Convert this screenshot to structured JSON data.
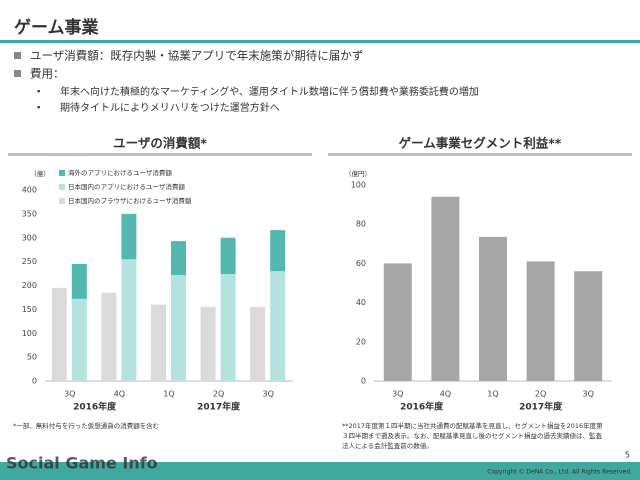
{
  "header": {
    "title": "ゲーム事業"
  },
  "bullets": [
    {
      "text": "ユーザ消費額：既存内製・協業アプリで年末施策が期待に届かず"
    },
    {
      "text": "費用：",
      "sub": [
        "年末へ向けた積極的なマーケティングや、運用タイトル数増に伴う償却費や業務委託費の増加",
        "期待タイトルによりメリハリをつけた運営方針へ"
      ]
    }
  ],
  "chart_data": [
    {
      "type": "bar",
      "title": "ユーザの消費額*",
      "unit": "（億）",
      "groups": [
        {
          "label": "2016年度",
          "categories": [
            "3Q",
            "4Q"
          ]
        },
        {
          "label": "2017年度",
          "categories": [
            "1Q",
            "2Q",
            "3Q"
          ]
        }
      ],
      "series": [
        {
          "name": "海外のアプリにおけるユーザ消費額",
          "color": "#55b8b0",
          "values": [
            73,
            95,
            71,
            76,
            86
          ]
        },
        {
          "name": "日本国内のアプリにおけるユーザ消費額",
          "color": "#b4e2de",
          "values": [
            172,
            255,
            222,
            224,
            230
          ]
        },
        {
          "name": "日本国内のブラウザにおけるユーザ消費額",
          "color": "#dadada",
          "values": [
            195,
            185,
            160,
            155,
            155
          ]
        }
      ],
      "ylim": [
        0,
        400
      ],
      "yticks": [
        0,
        50,
        100,
        150,
        200,
        250,
        300,
        350,
        400
      ],
      "footnote": [
        "*一部、無料付与を行った仮想通貨の消費額を含む"
      ]
    },
    {
      "type": "bar",
      "title": "ゲーム事業セグメント利益**",
      "unit": "（億円）",
      "groups": [
        {
          "label": "2016年度",
          "categories": [
            "3Q",
            "4Q"
          ]
        },
        {
          "label": "2017年度",
          "categories": [
            "1Q",
            "2Q",
            "3Q"
          ]
        }
      ],
      "series": [
        {
          "color": "#a6a6a6",
          "values": [
            60,
            94,
            73.5,
            61,
            56
          ]
        }
      ],
      "ylim": [
        0,
        100
      ],
      "yticks": [
        0,
        20,
        40,
        60,
        80,
        100
      ],
      "footnote": [
        "**2017年度第１四半期に当社共通費の配賦基準を見直し、セグメント損益を2016年度第",
        "３四半期まで遡及表示。なお、配賦基準見直し後のセグメント損益の過去実績値は、監査",
        "法人による会計監査前の数値。"
      ]
    }
  ],
  "footer": {
    "watermark": "Social Game Info",
    "copyright": "Copyright © DeNA Co., Ltd. All Rights Reserved.",
    "page": "5"
  }
}
